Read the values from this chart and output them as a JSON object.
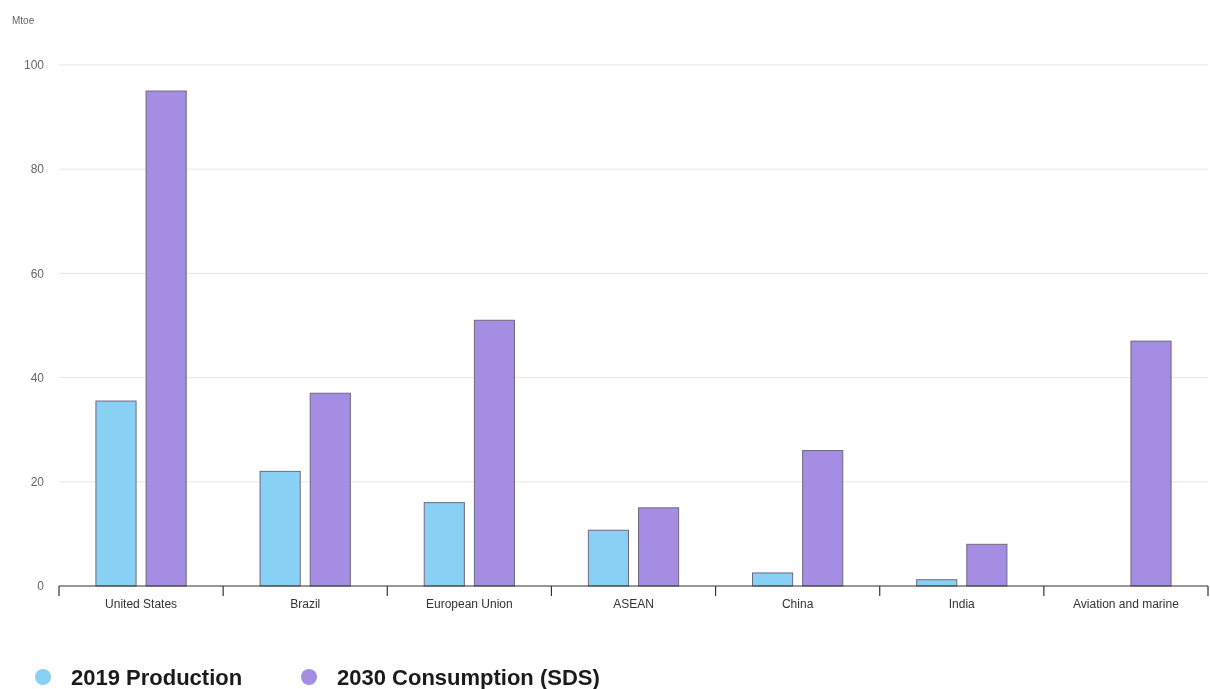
{
  "chart_data": {
    "type": "bar",
    "ylabel": "Mtoe",
    "categories": [
      "United States",
      "Brazil",
      "European Union",
      "ASEAN",
      "China",
      "India",
      "Aviation and marine"
    ],
    "series": [
      {
        "name": "2019 Production",
        "color": "#88d0f4",
        "values": [
          35.5,
          22,
          16,
          10.7,
          2.5,
          1.2,
          null
        ]
      },
      {
        "name": "2030 Consumption (SDS)",
        "color": "#a48de2",
        "values": [
          95,
          37,
          51,
          15,
          26,
          8,
          47
        ]
      }
    ],
    "ylim": [
      0,
      100
    ],
    "yticks": [
      0,
      20,
      40,
      60,
      80,
      100
    ],
    "grid": "y",
    "legend": "bottom left"
  }
}
